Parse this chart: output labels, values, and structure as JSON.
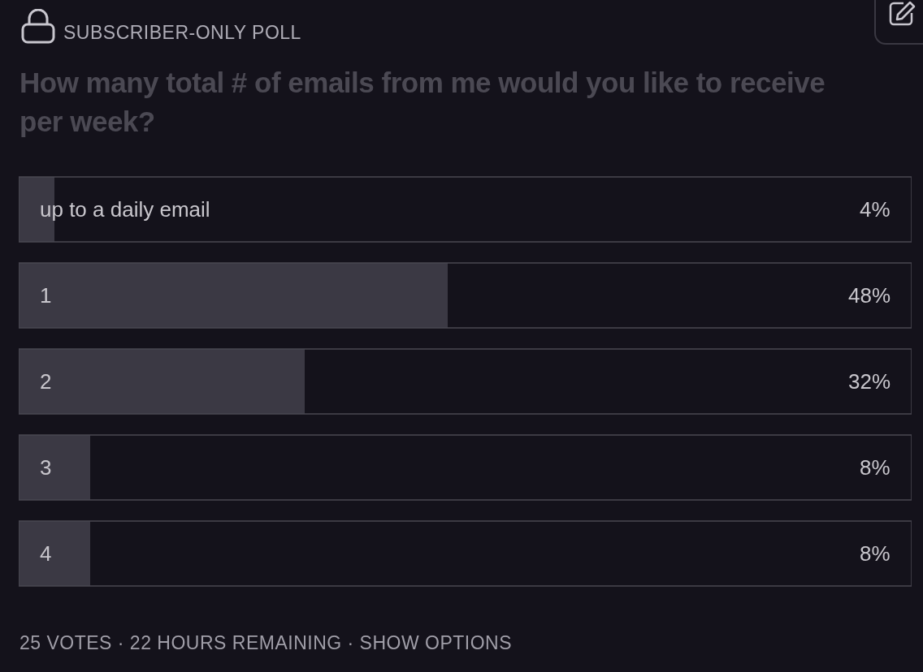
{
  "chart_data": {
    "type": "bar",
    "orientation": "horizontal",
    "subtitle": "SUBSCRIBER-ONLY POLL",
    "title": "How many total # of emails from me would you like to receive per week?",
    "categories": [
      "up to a daily email",
      "1",
      "2",
      "3",
      "4"
    ],
    "values": [
      4,
      48,
      32,
      8,
      8
    ],
    "value_labels": [
      "4%",
      "48%",
      "32%",
      "8%",
      "8%"
    ],
    "color": "#3b3944",
    "xlim": [
      0,
      100
    ],
    "tick_labels": false,
    "grid": false,
    "annotations": [
      "25 VOTES · 22 HOURS REMAINING · SHOW OPTIONS"
    ]
  }
}
